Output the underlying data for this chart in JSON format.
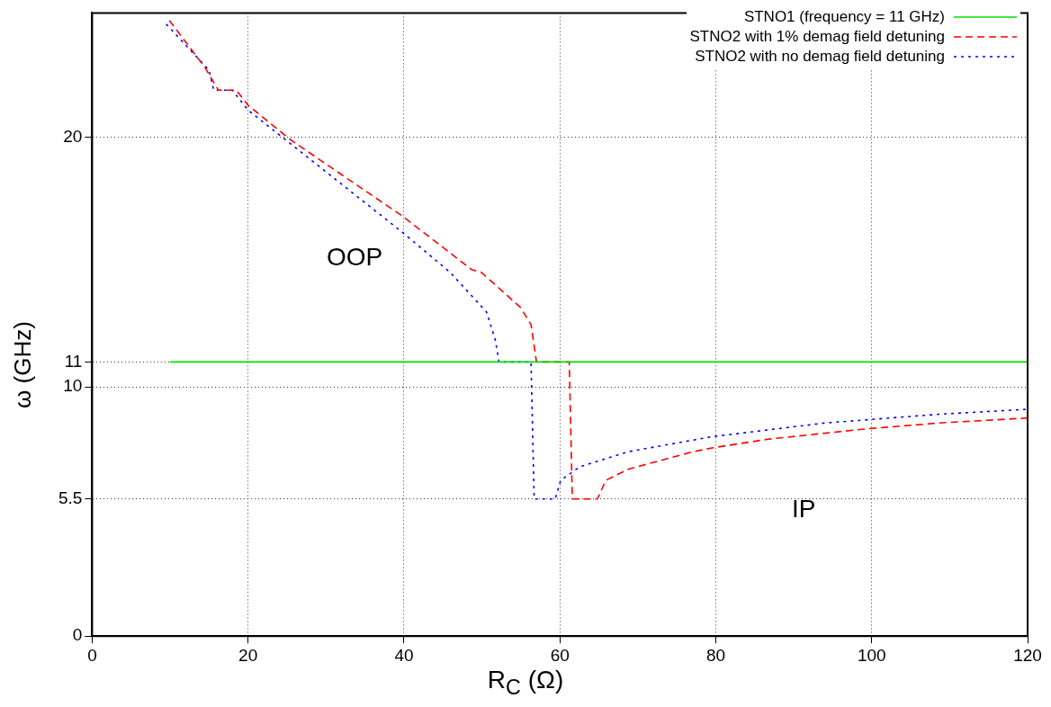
{
  "chart_data": {
    "type": "line",
    "xlabel": "R$_{C}$ (Ω)",
    "ylabel": "ω (GHz)",
    "xlim": [
      0,
      120
    ],
    "xticks": [
      0,
      20,
      40,
      60,
      80,
      100,
      120
    ],
    "ylim": [
      0,
      25
    ],
    "yticks": [
      0,
      5.5,
      10,
      11,
      20
    ],
    "grid": true,
    "legend": "top right",
    "marker": "none",
    "annotations": [
      "OOP",
      "IP"
    ],
    "series": [
      {
        "name": "STNO1 (frequency = 11 GHz)",
        "color": "#00e000",
        "line_style": "solid",
        "x": [
          10,
          120
        ],
        "values": [
          11,
          11
        ]
      },
      {
        "name": "STNO2 with 1% demag field detuning",
        "color": "#ff0000",
        "line_style": "dashed",
        "x": [
          9.9,
          14.5,
          16.2,
          18.5,
          20,
          25.5,
          39.8,
          48.7,
          49.9,
          54.9,
          56.3,
          57,
          61.2,
          61.6,
          64.8,
          65.9,
          68.8,
          77.1,
          79.5,
          86.7,
          98.8,
          108.6,
          120
        ],
        "values": [
          24.7,
          22.8,
          21.9,
          21.9,
          21.3,
          19.9,
          16.85,
          14.7,
          14.6,
          13.2,
          12.5,
          11,
          11,
          5.5,
          5.5,
          6.25,
          6.7,
          7.4,
          7.55,
          7.9,
          8.3,
          8.55,
          8.75
        ]
      },
      {
        "name": "STNO2 with no demag field detuning",
        "color": "#0000ff",
        "line_style": "dotted",
        "x": [
          9.5,
          15,
          15.6,
          18,
          20,
          39.8,
          45.9,
          50.6,
          51.7,
          52.2,
          56.3,
          56.7,
          59.4,
          60.1,
          62.6,
          68.8,
          79.5,
          94,
          108.6,
          120
        ],
        "values": [
          24.55,
          22.7,
          21.9,
          21.9,
          21.1,
          16.2,
          14.6,
          13,
          11.9,
          11,
          11,
          5.5,
          5.5,
          6.25,
          6.8,
          7.4,
          8,
          8.55,
          8.9,
          9.1
        ]
      }
    ]
  }
}
